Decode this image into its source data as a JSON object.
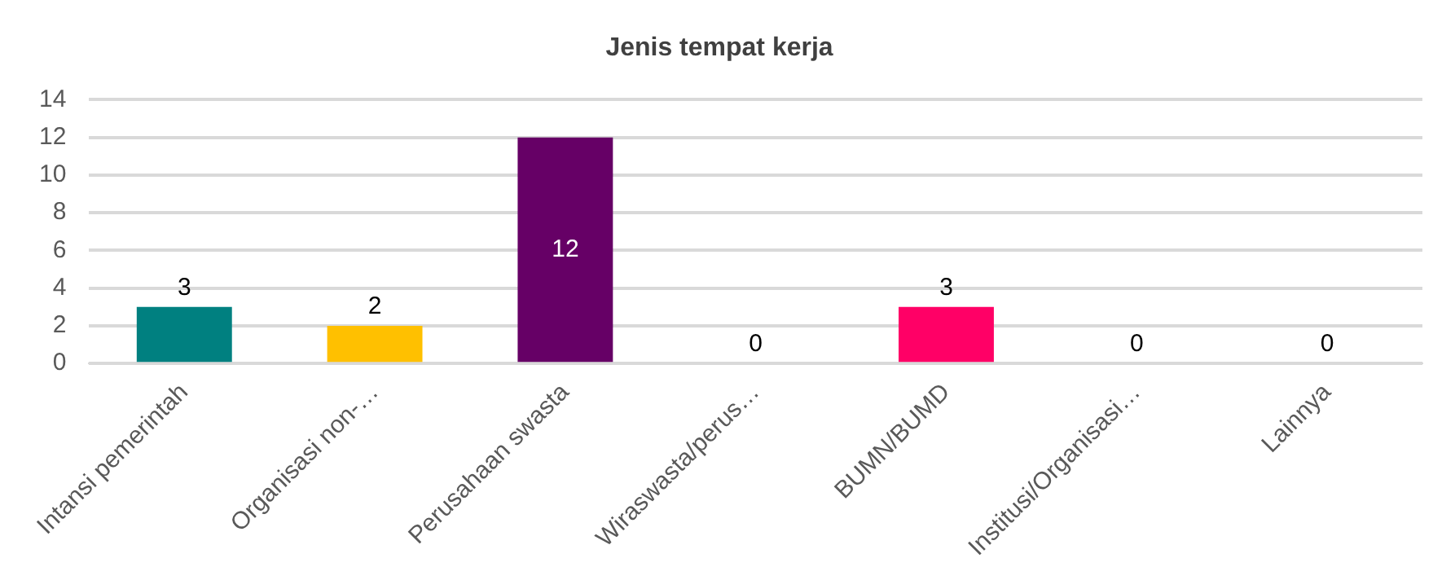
{
  "chart_data": {
    "type": "bar",
    "title": "Jenis tempat kerja",
    "categories": [
      "Intansi pemerintah",
      "Organisasi non-…",
      "Perusahaan swasta",
      "Wiraswasta/perus…",
      "BUMN/BUMD",
      "Institusi/Organisasi…",
      "Lainnya"
    ],
    "values": [
      3,
      2,
      12,
      0,
      3,
      0,
      0
    ],
    "colors": [
      "#008080",
      "#ffc000",
      "#660066",
      "#4472c4",
      "#ff0066",
      "#70ad47",
      "#a5a5a5"
    ],
    "ylim": [
      0,
      14
    ],
    "yticks": [
      0,
      2,
      4,
      6,
      8,
      10,
      12,
      14
    ],
    "grid": "y",
    "data_labels": true,
    "legend": false
  }
}
